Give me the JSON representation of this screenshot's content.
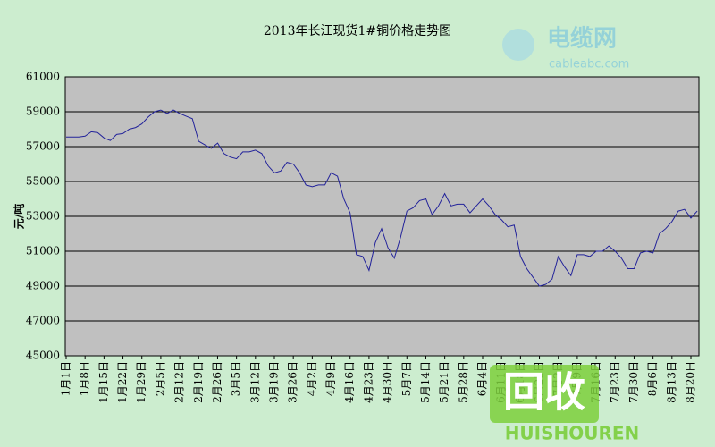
{
  "chart_data": {
    "type": "line",
    "title": "2013年长江现货1#铜价格走势图",
    "y_label": "元/吨",
    "categories": [
      "1月1日",
      null,
      null,
      "1月8日",
      null,
      null,
      "1月15日",
      null,
      null,
      "1月22日",
      null,
      null,
      "1月29日",
      null,
      null,
      "2月5日",
      null,
      null,
      "2月12日",
      null,
      null,
      "2月19日",
      null,
      null,
      "2月26日",
      null,
      null,
      "3月5日",
      null,
      null,
      "3月12日",
      null,
      null,
      "3月19日",
      null,
      null,
      "3月26日",
      null,
      null,
      "4月2日",
      null,
      null,
      "4月9日",
      null,
      null,
      "4月16日",
      null,
      null,
      "4月23日",
      null,
      null,
      "4月30日",
      null,
      null,
      "5月7日",
      null,
      null,
      "5月14日",
      null,
      null,
      "5月21日",
      null,
      null,
      "5月28日",
      null,
      null,
      "6月4日",
      null,
      null,
      "6月11日",
      null,
      null,
      "6月18日",
      null,
      null,
      "6月25日",
      null,
      null,
      "7月2日",
      null,
      null,
      "7月9日",
      null,
      null,
      "7月16日",
      null,
      null,
      "7月23日",
      null,
      null,
      "7月30日",
      null,
      null,
      "8月6日",
      null,
      null,
      "8月13日",
      null,
      null,
      "8月20日",
      null
    ],
    "values": [
      57550,
      57550,
      57550,
      57600,
      57850,
      57800,
      57500,
      57350,
      57700,
      57750,
      58000,
      58100,
      58300,
      58700,
      59000,
      59100,
      58900,
      59100,
      58900,
      58750,
      58600,
      57300,
      57100,
      56900,
      57200,
      56600,
      56400,
      56300,
      56700,
      56700,
      56800,
      56600,
      55900,
      55500,
      55600,
      56100,
      56000,
      55500,
      54800,
      54700,
      54800,
      54800,
      55500,
      55300,
      54000,
      53200,
      50800,
      50700,
      49900,
      51500,
      52300,
      51200,
      50600,
      51800,
      53300,
      53500,
      53900,
      54000,
      53100,
      53600,
      54300,
      53600,
      53700,
      53700,
      53200,
      53600,
      54000,
      53600,
      53100,
      52800,
      52400,
      52500,
      50700,
      50000,
      49500,
      49000,
      49100,
      49400,
      50700,
      50100,
      49600,
      50800,
      50800,
      50700,
      51000,
      51000,
      51300,
      51000,
      50600,
      50000,
      50000,
      50900,
      51000,
      50900,
      52000,
      52300,
      52700,
      53300,
      53400,
      52900,
      53300
    ],
    "color": "#22229a",
    "ylim": [
      45000,
      61000
    ],
    "yticks": [
      45000,
      47000,
      49000,
      51000,
      53000,
      55000,
      57000,
      59000,
      61000
    ],
    "grid": true
  },
  "watermarks": [
    "电缆网",
    "cableabc.com",
    "回收",
    "HUISHOUREN"
  ]
}
